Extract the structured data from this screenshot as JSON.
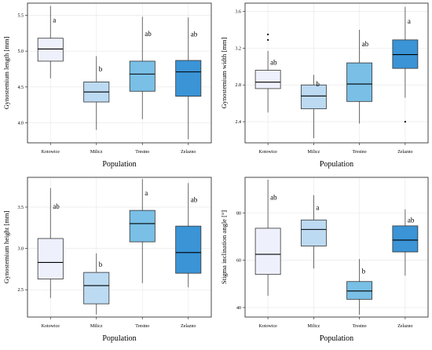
{
  "colors": {
    "Kotowice": "#eef1fc",
    "Milicz": "#bcdaf2",
    "Trestno": "#79bfe6",
    "Zelazno": "#3a94d6"
  },
  "chart_data": [
    {
      "type": "box",
      "title": "",
      "xlabel": "Population",
      "ylabel": "Gynostemium length [mm]",
      "categories": [
        "Kotowice",
        "Milicz",
        "Trestno",
        "Zelazno"
      ],
      "ylim": [
        3.72,
        5.67
      ],
      "yticks": [
        4.0,
        4.5,
        5.0,
        5.5
      ],
      "tick_labels": [
        "4.0",
        "4.5",
        "5.0",
        "5.5"
      ],
      "boxes": [
        {
          "low": 4.62,
          "q1": 4.86,
          "median": 5.03,
          "q3": 5.18,
          "high": 5.63,
          "outliers": [],
          "letter": "a"
        },
        {
          "low": 3.9,
          "q1": 4.29,
          "median": 4.43,
          "q3": 4.57,
          "high": 4.93,
          "outliers": [],
          "letter": "b"
        },
        {
          "low": 4.05,
          "q1": 4.44,
          "median": 4.68,
          "q3": 4.86,
          "high": 5.48,
          "outliers": [],
          "letter": "ab"
        },
        {
          "low": 3.77,
          "q1": 4.37,
          "median": 4.71,
          "q3": 4.87,
          "high": 5.47,
          "outliers": [],
          "letter": "ab"
        }
      ]
    },
    {
      "type": "box",
      "title": "",
      "xlabel": "Population",
      "ylabel": "Gynostemium width [mm]",
      "categories": [
        "Kotowice",
        "Milicz",
        "Trestno",
        "Zelazno"
      ],
      "ylim": [
        2.17,
        3.69
      ],
      "yticks": [
        2.4,
        2.8,
        3.2,
        3.6
      ],
      "tick_labels": [
        "2.4",
        "2.8",
        "3.2",
        "3.6"
      ],
      "boxes": [
        {
          "low": 2.5,
          "q1": 2.76,
          "median": 2.83,
          "q3": 2.96,
          "high": 3.17,
          "outliers": [
            3.29,
            3.35
          ],
          "letter": "ab"
        },
        {
          "low": 2.22,
          "q1": 2.54,
          "median": 2.68,
          "q3": 2.8,
          "high": 2.91,
          "outliers": [],
          "letter": "b"
        },
        {
          "low": 2.38,
          "q1": 2.62,
          "median": 2.81,
          "q3": 3.04,
          "high": 3.4,
          "outliers": [],
          "letter": "ab"
        },
        {
          "low": 2.66,
          "q1": 2.98,
          "median": 3.13,
          "q3": 3.29,
          "high": 3.65,
          "outliers": [
            2.4
          ],
          "letter": "a"
        }
      ]
    },
    {
      "type": "box",
      "title": "",
      "xlabel": "Population",
      "ylabel": "Gynostemium height [mm]",
      "categories": [
        "Kotowice",
        "Milicz",
        "Trestno",
        "Zelazno"
      ],
      "ylim": [
        2.17,
        3.86
      ],
      "yticks": [
        2.5,
        3.0,
        3.5
      ],
      "tick_labels": [
        "2.5",
        "3.0",
        "3.5"
      ],
      "boxes": [
        {
          "low": 2.4,
          "q1": 2.63,
          "median": 2.83,
          "q3": 3.12,
          "high": 3.73,
          "outliers": [],
          "letter": "ab"
        },
        {
          "low": 2.2,
          "q1": 2.33,
          "median": 2.55,
          "q3": 2.71,
          "high": 2.94,
          "outliers": [],
          "letter": "b"
        },
        {
          "low": 2.58,
          "q1": 3.08,
          "median": 3.3,
          "q3": 3.46,
          "high": 3.84,
          "outliers": [],
          "letter": "a"
        },
        {
          "low": 2.53,
          "q1": 2.7,
          "median": 2.95,
          "q3": 3.27,
          "high": 3.79,
          "outliers": [],
          "letter": "ab"
        }
      ]
    },
    {
      "type": "box",
      "title": "",
      "xlabel": "Population",
      "ylabel": "Stigma inclination angle [°]",
      "categories": [
        "Kotowice",
        "Milicz",
        "Trestno",
        "Zelazno"
      ],
      "ylim": [
        36,
        95
      ],
      "yticks": [
        40,
        60,
        80
      ],
      "tick_labels": [
        "40",
        "60",
        "80"
      ],
      "boxes": [
        {
          "low": 45,
          "q1": 54,
          "median": 62.5,
          "q3": 73.5,
          "high": 94,
          "outliers": [],
          "letter": "ab"
        },
        {
          "low": 56.5,
          "q1": 66,
          "median": 73,
          "q3": 77,
          "high": 87.5,
          "outliers": [],
          "letter": "a"
        },
        {
          "low": 37,
          "q1": 43.5,
          "median": 47,
          "q3": 51,
          "high": 60.5,
          "outliers": [],
          "letter": "b"
        },
        {
          "low": 53.5,
          "q1": 63.5,
          "median": 68.5,
          "q3": 74.5,
          "high": 81.5,
          "outliers": [],
          "letter": "ab"
        }
      ]
    }
  ]
}
